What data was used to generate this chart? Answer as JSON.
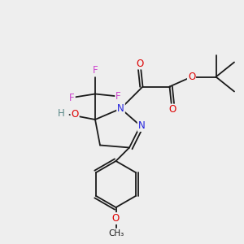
{
  "bg_color": "#eeeeee",
  "bond_color": "#1a1a1a",
  "atom_colors": {
    "F": "#cc44cc",
    "O": "#dd0000",
    "N": "#2222dd",
    "H": "#5a8888"
  },
  "font_size_atom": 8.5,
  "font_size_small": 7.5
}
